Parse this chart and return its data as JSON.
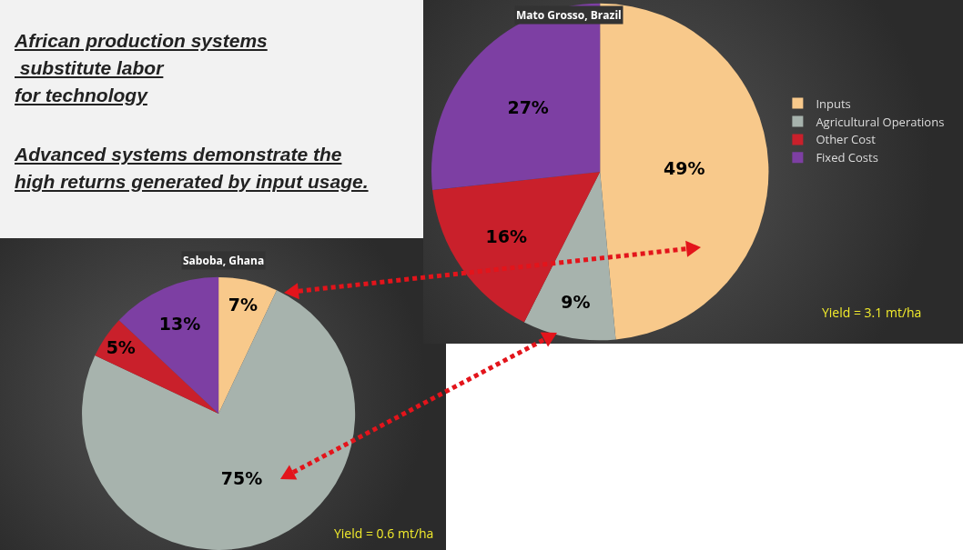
{
  "chart_data": [
    {
      "type": "other",
      "title": "African production systems\n substitute labor\nfor technology",
      "subtitle": "Advanced systems demonstrate the\nhigh returns generated by input usage."
    },
    {
      "type": "pie",
      "title": "Mato Grosso, Brazil",
      "categories": [
        "Inputs",
        "Agricultural Operations",
        "Other Cost",
        "Fixed Costs"
      ],
      "values": [
        49,
        9,
        16,
        27
      ],
      "colors": [
        "#f8c98b",
        "#a7b3ad",
        "#c9202b",
        "#7d3fa3"
      ],
      "value_labels": [
        "49%",
        "9%",
        "16%",
        "27%"
      ],
      "legend": "right",
      "annotations": [
        "Yield = 3.1 mt/ha"
      ]
    },
    {
      "type": "pie",
      "title": "Saboba, Ghana",
      "categories": [
        null,
        null,
        null,
        null
      ],
      "values": [
        7,
        75,
        5,
        13
      ],
      "colors": [
        "#f8c98b",
        "#a7b3ad",
        "#c9202b",
        "#7d3fa3"
      ],
      "value_labels": [
        "7%",
        "75%",
        "5%",
        "13%"
      ],
      "annotations": [
        "Yield = 0.6 mt/ha"
      ]
    }
  ]
}
